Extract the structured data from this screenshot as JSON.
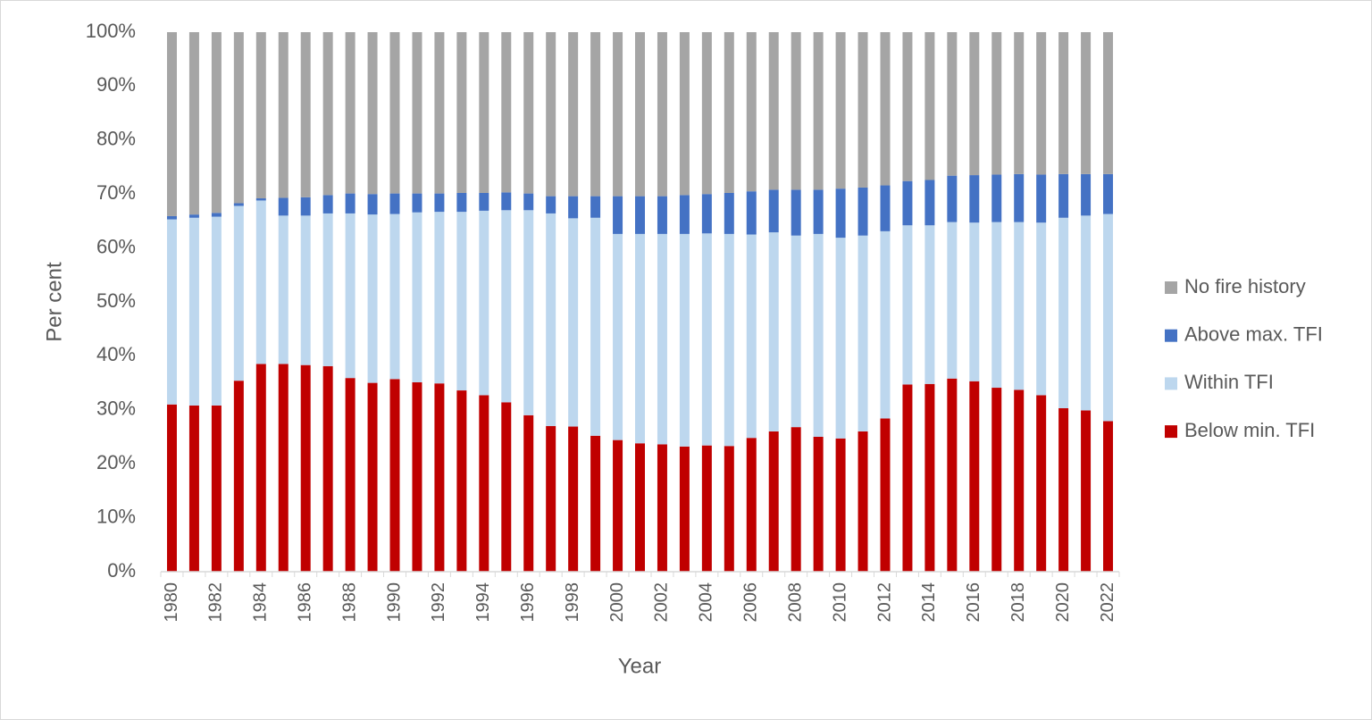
{
  "chart_data": {
    "type": "stacked_bar",
    "x_label": "Year",
    "y_label": "Per cent",
    "categories": [
      "1980",
      null,
      "1982",
      null,
      "1984",
      null,
      "1986",
      null,
      "1988",
      null,
      "1990",
      null,
      "1992",
      null,
      "1994",
      null,
      "1996",
      null,
      "1998",
      null,
      "2000",
      null,
      "2002",
      null,
      "2004",
      null,
      "2006",
      null,
      "2008",
      null,
      "2010",
      null,
      "2012",
      null,
      "2014",
      null,
      "2016",
      null,
      "2018",
      null,
      "2020",
      null,
      "2022"
    ],
    "series": [
      {
        "name": "Below min. TFI",
        "color": "#c00000",
        "values": [
          31.0,
          30.8,
          30.8,
          35.4,
          38.5,
          38.5,
          38.3,
          38.1,
          35.9,
          35.0,
          35.7,
          35.1,
          34.9,
          33.6,
          32.7,
          31.4,
          29.0,
          27.0,
          26.9,
          25.2,
          24.4,
          23.8,
          23.6,
          23.2,
          23.4,
          23.3,
          24.8,
          26.0,
          26.8,
          25.0,
          24.7,
          26.0,
          28.4,
          34.7,
          34.8,
          35.8,
          35.3,
          34.1,
          33.7,
          32.7,
          30.3,
          29.9,
          27.9
        ]
      },
      {
        "name": "Within TFI",
        "color": "#bdd7ee",
        "values": [
          34.3,
          34.8,
          35.0,
          32.4,
          30.3,
          27.5,
          27.7,
          28.3,
          30.5,
          31.2,
          30.6,
          31.5,
          31.8,
          33.1,
          34.2,
          35.6,
          38.0,
          39.4,
          38.6,
          40.4,
          38.2,
          38.8,
          39.0,
          39.4,
          39.3,
          39.3,
          37.7,
          36.9,
          35.5,
          37.6,
          37.2,
          36.3,
          34.7,
          29.5,
          29.4,
          29.0,
          29.4,
          30.7,
          31.1,
          32.0,
          35.3,
          36.1,
          38.4
        ]
      },
      {
        "name": "Above max. TFI",
        "color": "#4472c4",
        "values": [
          0.6,
          0.6,
          0.7,
          0.5,
          0.4,
          3.3,
          3.4,
          3.4,
          3.7,
          3.8,
          3.8,
          3.5,
          3.4,
          3.5,
          3.3,
          3.3,
          3.1,
          3.2,
          4.1,
          4.0,
          7.0,
          7.0,
          7.0,
          7.2,
          7.3,
          7.6,
          8.0,
          7.9,
          8.5,
          8.2,
          9.1,
          8.9,
          8.5,
          8.2,
          8.4,
          8.6,
          8.8,
          8.8,
          8.9,
          8.9,
          8.1,
          7.7,
          7.4
        ]
      },
      {
        "name": "No fire history",
        "color": "#a5a5a5",
        "values": [
          34.1,
          33.8,
          33.5,
          31.7,
          30.8,
          30.7,
          30.6,
          30.2,
          29.9,
          30.0,
          29.9,
          29.9,
          29.9,
          29.8,
          29.8,
          29.7,
          29.9,
          30.4,
          30.4,
          30.4,
          30.4,
          30.4,
          30.4,
          30.2,
          30.0,
          29.8,
          29.5,
          29.2,
          29.2,
          29.2,
          29.0,
          28.8,
          28.4,
          27.6,
          27.4,
          26.6,
          26.5,
          26.4,
          26.3,
          26.4,
          26.3,
          26.3,
          26.3
        ]
      }
    ],
    "ylim": [
      0,
      100
    ],
    "yticks": [
      {
        "value": 0,
        "label": "0%"
      },
      {
        "value": 10,
        "label": "10%"
      },
      {
        "value": 20,
        "label": "20%"
      },
      {
        "value": 30,
        "label": "30%"
      },
      {
        "value": 40,
        "label": "40%"
      },
      {
        "value": 50,
        "label": "50%"
      },
      {
        "value": 60,
        "label": "60%"
      },
      {
        "value": 70,
        "label": "70%"
      },
      {
        "value": 80,
        "label": "80%"
      },
      {
        "value": 90,
        "label": "90%"
      },
      {
        "value": 100,
        "label": "100%"
      }
    ],
    "grid": false,
    "legend": "right"
  }
}
